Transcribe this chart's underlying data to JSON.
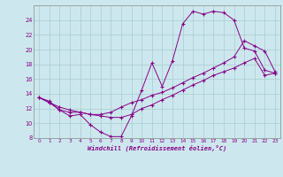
{
  "xlabel": "Windchill (Refroidissement éolien,°C)",
  "bg_color": "#cce8ee",
  "line_color": "#880088",
  "grid_color": "#aacccc",
  "spine_color": "#888888",
  "xlim": [
    -0.5,
    23.5
  ],
  "ylim": [
    8,
    26
  ],
  "xticks": [
    0,
    1,
    2,
    3,
    4,
    5,
    6,
    7,
    8,
    9,
    10,
    11,
    12,
    13,
    14,
    15,
    16,
    17,
    18,
    19,
    20,
    21,
    22,
    23
  ],
  "yticks": [
    8,
    10,
    12,
    14,
    16,
    18,
    20,
    22,
    24
  ],
  "line1_x": [
    0,
    1,
    2,
    3,
    4,
    5,
    6,
    7,
    8,
    9,
    10,
    11,
    12,
    13,
    14,
    15,
    16,
    17,
    18,
    19,
    20,
    21,
    22,
    23
  ],
  "line1_y": [
    13.5,
    13.0,
    11.8,
    11.0,
    11.2,
    9.8,
    8.8,
    8.2,
    8.2,
    11.0,
    14.5,
    18.2,
    15.0,
    18.5,
    23.5,
    25.2,
    24.8,
    25.2,
    25.0,
    24.0,
    20.2,
    19.8,
    17.2,
    16.8
  ],
  "line2_x": [
    0,
    1,
    2,
    3,
    4,
    5,
    6,
    7,
    8,
    9,
    10,
    11,
    12,
    13,
    14,
    15,
    16,
    17,
    18,
    19,
    20,
    21,
    22,
    23
  ],
  "line2_y": [
    13.5,
    12.8,
    11.8,
    11.5,
    11.5,
    11.2,
    11.2,
    11.5,
    12.2,
    12.8,
    13.2,
    13.8,
    14.2,
    14.8,
    15.5,
    16.2,
    16.8,
    17.5,
    18.2,
    19.0,
    21.2,
    20.5,
    19.8,
    17.0
  ],
  "line3_x": [
    0,
    1,
    2,
    3,
    4,
    5,
    6,
    7,
    8,
    9,
    10,
    11,
    12,
    13,
    14,
    15,
    16,
    17,
    18,
    19,
    20,
    21,
    22,
    23
  ],
  "line3_y": [
    13.5,
    12.8,
    12.2,
    11.8,
    11.5,
    11.2,
    11.0,
    10.8,
    10.8,
    11.2,
    12.0,
    12.5,
    13.2,
    13.8,
    14.5,
    15.2,
    15.8,
    16.5,
    17.0,
    17.5,
    18.2,
    18.8,
    16.5,
    16.8
  ]
}
